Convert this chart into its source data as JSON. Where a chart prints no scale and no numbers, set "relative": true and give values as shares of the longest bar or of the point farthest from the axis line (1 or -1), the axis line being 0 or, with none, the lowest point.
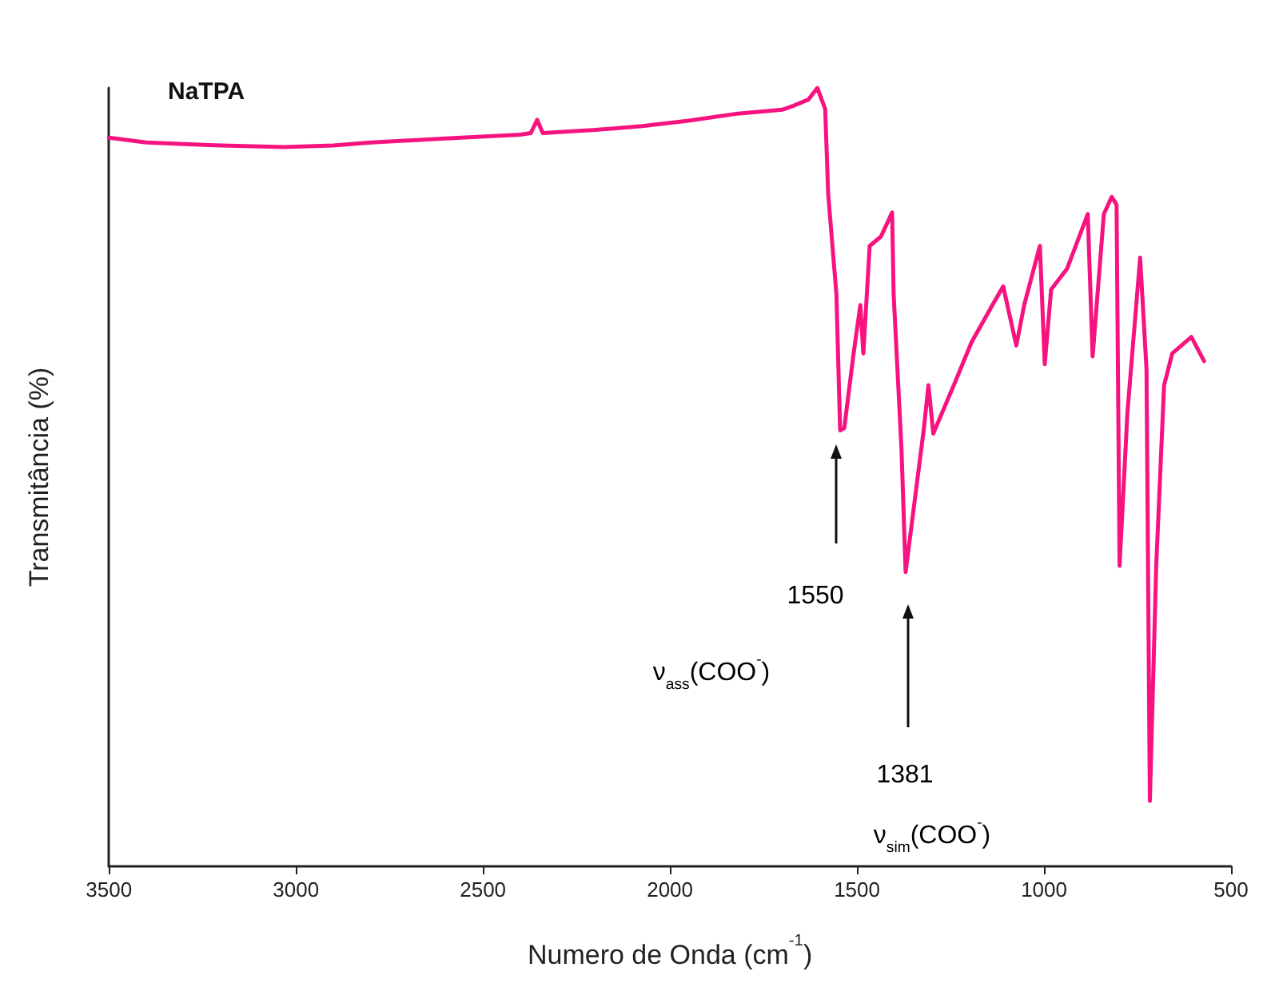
{
  "chart_data": {
    "type": "line",
    "title": "NaTPA",
    "xlabel": "Numero de Onda (cm$^{-1}$)",
    "ylabel": "Transmitância (%)",
    "relative": true,
    "xlim": [
      3500,
      500
    ],
    "xticks": [
      3500,
      3000,
      2500,
      2000,
      1500,
      1000,
      500
    ],
    "grid": false,
    "marker": "none",
    "line_style": "solid",
    "series": [
      {
        "color": "#f7137f",
        "x": [
          3500,
          3400,
          3300,
          3200,
          3032,
          2900,
          2798,
          2600,
          2400,
          2372,
          2355,
          2340,
          2200,
          2074,
          1950,
          1819,
          1700,
          1670,
          1630,
          1606,
          1585,
          1577,
          1555,
          1545,
          1534,
          1509,
          1491,
          1483,
          1466,
          1436,
          1406,
          1402,
          1381,
          1370,
          1343,
          1321,
          1309,
          1296,
          1236,
          1194,
          1138,
          1109,
          1074,
          1053,
          1011,
          998,
          981,
          938,
          883,
          870,
          840,
          819,
          806,
          798,
          777,
          743,
          726,
          717,
          700,
          679,
          657,
          606,
          572
        ],
        "values": [
          0.936,
          0.93,
          0.928,
          0.926,
          0.924,
          0.926,
          0.93,
          0.935,
          0.94,
          0.942,
          0.959,
          0.942,
          0.946,
          0.951,
          0.958,
          0.967,
          0.972,
          0.977,
          0.985,
          1.0,
          0.973,
          0.864,
          0.735,
          0.56,
          0.563,
          0.659,
          0.721,
          0.659,
          0.797,
          0.809,
          0.84,
          0.735,
          0.536,
          0.378,
          0.48,
          0.563,
          0.618,
          0.556,
          0.624,
          0.673,
          0.721,
          0.745,
          0.669,
          0.721,
          0.797,
          0.645,
          0.741,
          0.768,
          0.838,
          0.655,
          0.838,
          0.86,
          0.85,
          0.386,
          0.583,
          0.782,
          0.639,
          0.084,
          0.386,
          0.618,
          0.659,
          0.68,
          0.649
        ]
      }
    ],
    "annotations": [
      "1550",
      "ν$_{ass}$(COO$^{-}$)",
      "1381",
      "ν$_{sim}$(COO$^{-}$)"
    ]
  }
}
